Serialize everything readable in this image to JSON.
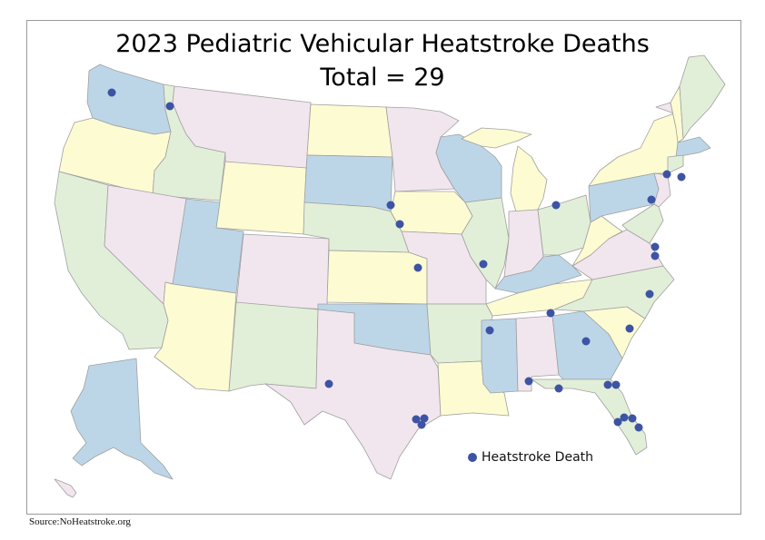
{
  "title_line1": "2023 Pediatric Vehicular Heatstroke Deaths",
  "title_line2": "Total = 29",
  "legend_label": "Heatstroke Death",
  "source": "Source:NoHeatstroke.org",
  "colors": {
    "yellow": "#fdfbd2",
    "pink": "#f2e6ee",
    "blue": "#bcd6e8",
    "green": "#e2efd8",
    "border": "#a0a0a0",
    "dot": "#3d53a4"
  }
}
